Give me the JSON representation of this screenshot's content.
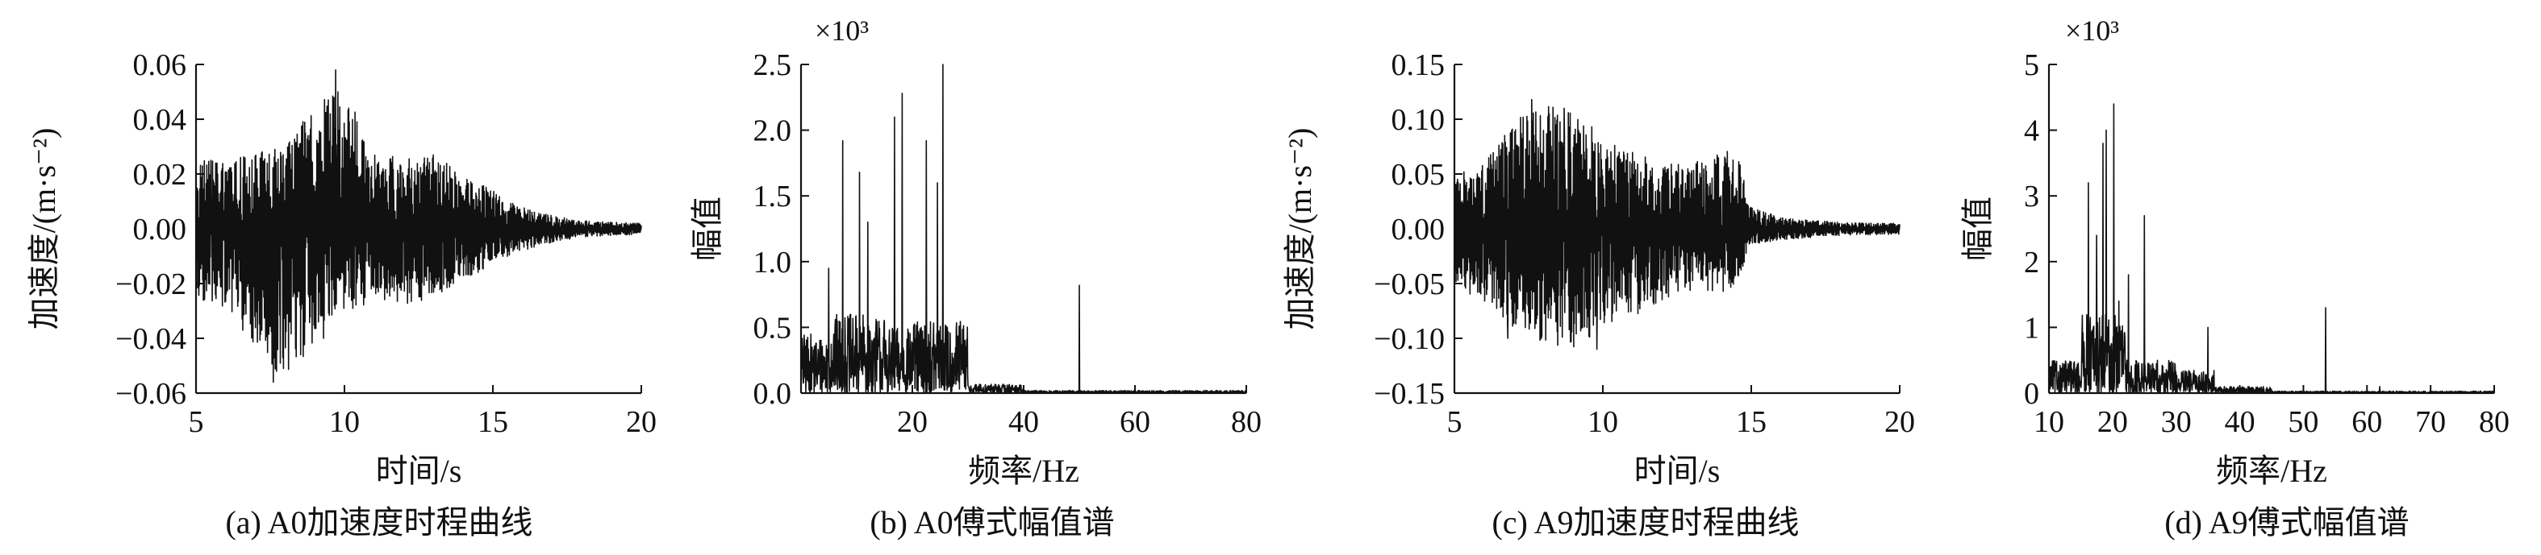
{
  "figure": {
    "captions": [
      "(a) A0加速度时程曲线",
      "(b) A0傅式幅值谱",
      "(c) A9加速度时程曲线",
      "(d) A9傅式幅值谱"
    ]
  },
  "chart_data": [
    {
      "id": "a",
      "type": "line",
      "caption": "(a) A0加速度时程曲线",
      "xlabel": "时间/s",
      "ylabel": "加速度/(m·s⁻²)",
      "xlim": [
        5,
        20
      ],
      "ylim": [
        -0.06,
        0.06
      ],
      "xticks": [
        "5",
        "10",
        "15",
        "20"
      ],
      "yticks": [
        "−0.06",
        "−0.04",
        "−0.02",
        "0.00",
        "0.02",
        "0.04",
        "0.06"
      ],
      "grid": false,
      "series": [
        {
          "kind": "oscillation",
          "envelope_x": [
            5,
            6,
            8,
            9.7,
            11,
            12,
            13,
            14,
            15,
            16,
            17,
            18,
            20
          ],
          "envelope_pos": [
            0.025,
            0.025,
            0.03,
            0.058,
            0.028,
            0.027,
            0.027,
            0.02,
            0.014,
            0.008,
            0.005,
            0.003,
            0.002
          ],
          "envelope_neg": [
            -0.025,
            -0.03,
            -0.056,
            -0.03,
            -0.028,
            -0.028,
            -0.025,
            -0.02,
            -0.013,
            -0.008,
            -0.005,
            -0.003,
            -0.002
          ],
          "spikes": [
            [
              9.7,
              0.058
            ],
            [
              7.6,
              -0.056
            ],
            [
              9.3,
              -0.04
            ],
            [
              5.5,
              0.025
            ]
          ]
        }
      ]
    },
    {
      "id": "b",
      "type": "line",
      "caption": "(b) A0傅式幅值谱",
      "xlabel": "频率/Hz",
      "ylabel": "幅值",
      "multiplier": "×10³",
      "xlim": [
        0,
        80
      ],
      "ylim": [
        0,
        2.5
      ],
      "xticks": [
        "20",
        "40",
        "60",
        "80"
      ],
      "yticks": [
        "0.0",
        "0.5",
        "1.0",
        "1.5",
        "2.0",
        "2.5"
      ],
      "grid": false,
      "series": [
        {
          "kind": "spectrum",
          "bands": [
            [
              0,
              5,
              0.45
            ],
            [
              5,
              15,
              0.6
            ],
            [
              15,
              20,
              0.5
            ],
            [
              20,
              30,
              0.55
            ],
            [
              30,
              40,
              0.07
            ],
            [
              40,
              80,
              0.02
            ]
          ],
          "peaks": [
            [
              25.5,
              2.5
            ],
            [
              18.2,
              2.28
            ],
            [
              16.8,
              2.1
            ],
            [
              7.5,
              1.92
            ],
            [
              22.5,
              1.92
            ],
            [
              10.5,
              1.68
            ],
            [
              24.5,
              1.6
            ],
            [
              12,
              1.3
            ],
            [
              5,
              0.95
            ],
            [
              28.5,
              0.5
            ],
            [
              50,
              0.82
            ]
          ]
        }
      ]
    },
    {
      "id": "c",
      "type": "line",
      "caption": "(c) A9加速度时程曲线",
      "xlabel": "时间/s",
      "ylabel": "加速度/(m·s⁻²)",
      "xlim": [
        5,
        20
      ],
      "ylim": [
        -0.15,
        0.15
      ],
      "xticks": [
        "5",
        "10",
        "15",
        "20"
      ],
      "yticks": [
        "−0.15",
        "−0.10",
        "−0.05",
        "0.00",
        "0.05",
        "0.10",
        "0.15"
      ],
      "grid": false,
      "series": [
        {
          "kind": "oscillation",
          "envelope_x": [
            5,
            6,
            7.5,
            9,
            10,
            11,
            12,
            13,
            14,
            14.5,
            15,
            16,
            17,
            18,
            20
          ],
          "envelope_pos": [
            0.05,
            0.06,
            0.115,
            0.11,
            0.085,
            0.07,
            0.06,
            0.06,
            0.07,
            0.075,
            0.02,
            0.01,
            0.008,
            0.006,
            0.005
          ],
          "envelope_neg": [
            -0.05,
            -0.07,
            -0.1,
            -0.11,
            -0.09,
            -0.08,
            -0.07,
            -0.06,
            -0.06,
            -0.05,
            -0.015,
            -0.01,
            -0.008,
            -0.006,
            -0.005
          ],
          "spikes": [
            [
              7.6,
              0.118
            ],
            [
              9.8,
              -0.11
            ],
            [
              8.7,
              0.11
            ],
            [
              6.8,
              -0.1
            ]
          ]
        }
      ]
    },
    {
      "id": "d",
      "type": "line",
      "caption": "(d) A9傅式幅值谱",
      "xlabel": "频率/Hz",
      "ylabel": "幅值",
      "multiplier": "×10³",
      "xlim": [
        10,
        80
      ],
      "ylim": [
        0,
        5
      ],
      "xticks": [
        "10",
        "20",
        "30",
        "40",
        "50",
        "60",
        "70",
        "80"
      ],
      "yticks": [
        "0",
        "1",
        "2",
        "3",
        "4",
        "5"
      ],
      "grid": false,
      "series": [
        {
          "kind": "spectrum",
          "bands": [
            [
              10,
              15,
              0.5
            ],
            [
              15,
              22,
              1.2
            ],
            [
              22,
              30,
              0.5
            ],
            [
              30,
              36,
              0.35
            ],
            [
              36,
              45,
              0.1
            ],
            [
              45,
              80,
              0.03
            ]
          ],
          "peaks": [
            [
              20.2,
              4.4
            ],
            [
              19,
              4.0
            ],
            [
              18.5,
              3.8
            ],
            [
              16.2,
              3.2
            ],
            [
              25,
              2.7
            ],
            [
              17.5,
              2.4
            ],
            [
              22.5,
              1.8
            ],
            [
              21,
              1.4
            ],
            [
              35,
              1.0
            ],
            [
              53.5,
              1.3
            ],
            [
              62,
              0.1
            ]
          ]
        }
      ]
    }
  ]
}
